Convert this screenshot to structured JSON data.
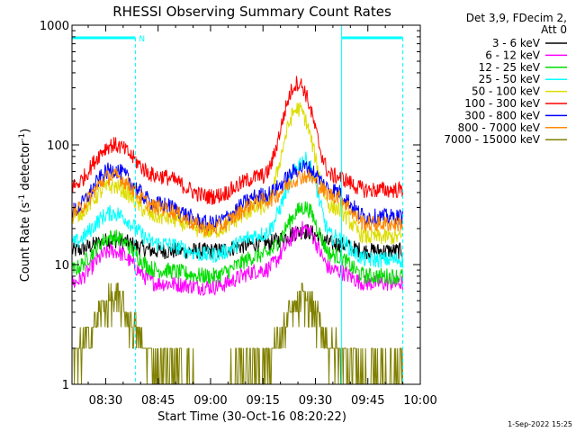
{
  "chart_data": {
    "type": "line",
    "title": "RHESSI Observing Summary Count Rates",
    "xlabel": "Start Time (30-Oct-16 08:20:22)",
    "ylabel": "Count Rate (s",
    "ylabel_sup": "-1",
    "ylabel_tail": " detector",
    "ylabel_sup2": "-1",
    "ylabel_end": ")",
    "yscale": "log",
    "xlim": [
      "08:20:22",
      "10:00:00"
    ],
    "ylim": [
      1,
      1000
    ],
    "x_ticks": [
      "08:30",
      "08:45",
      "09:00",
      "09:15",
      "09:30",
      "09:45",
      "10:00"
    ],
    "y_ticks": [
      "1",
      "10",
      "100",
      "1000"
    ],
    "grid": false,
    "legend_position": "right",
    "legend_header": [
      "Det 3,9, FDecim 2,",
      "Att 0"
    ],
    "flag_label": "N",
    "flag_intervals": [
      [
        "08:20:22",
        "08:38:30"
      ],
      [
        "09:37:30",
        "09:55:00"
      ]
    ],
    "footer_date": "1-Sep-2022 15:25",
    "series": [
      {
        "name": "3 - 6 keV",
        "color": "#000000",
        "values": [
          {
            "x": "08:20",
            "y": 13
          },
          {
            "x": "08:32",
            "y": 16
          },
          {
            "x": "08:45",
            "y": 13
          },
          {
            "x": "09:00",
            "y": 13
          },
          {
            "x": "09:15",
            "y": 15
          },
          {
            "x": "09:27",
            "y": 19
          },
          {
            "x": "09:35",
            "y": 15
          },
          {
            "x": "09:45",
            "y": 13
          },
          {
            "x": "09:55",
            "y": 13
          }
        ]
      },
      {
        "name": "6 - 12 keV",
        "color": "#ff00ff",
        "values": [
          {
            "x": "08:20",
            "y": 7
          },
          {
            "x": "08:32",
            "y": 13
          },
          {
            "x": "08:45",
            "y": 7
          },
          {
            "x": "09:00",
            "y": 6.5
          },
          {
            "x": "09:15",
            "y": 9
          },
          {
            "x": "09:27",
            "y": 20
          },
          {
            "x": "09:35",
            "y": 9
          },
          {
            "x": "09:45",
            "y": 7
          },
          {
            "x": "09:55",
            "y": 7
          }
        ]
      },
      {
        "name": "12 - 25 keV",
        "color": "#00dd00",
        "values": [
          {
            "x": "08:20",
            "y": 9
          },
          {
            "x": "08:32",
            "y": 17
          },
          {
            "x": "08:45",
            "y": 9
          },
          {
            "x": "09:00",
            "y": 8
          },
          {
            "x": "09:15",
            "y": 12
          },
          {
            "x": "09:27",
            "y": 30
          },
          {
            "x": "09:35",
            "y": 12
          },
          {
            "x": "09:45",
            "y": 8
          },
          {
            "x": "09:55",
            "y": 8
          }
        ]
      },
      {
        "name": "25 - 50 keV",
        "color": "#00ffff",
        "values": [
          {
            "x": "08:20",
            "y": 15
          },
          {
            "x": "08:32",
            "y": 27
          },
          {
            "x": "08:45",
            "y": 15
          },
          {
            "x": "09:00",
            "y": 12
          },
          {
            "x": "09:15",
            "y": 18
          },
          {
            "x": "09:27",
            "y": 75
          },
          {
            "x": "09:35",
            "y": 17
          },
          {
            "x": "09:45",
            "y": 11
          },
          {
            "x": "09:55",
            "y": 11
          }
        ]
      },
      {
        "name": "50 - 100 keV",
        "color": "#dddd00",
        "values": [
          {
            "x": "08:20",
            "y": 25
          },
          {
            "x": "08:32",
            "y": 45
          },
          {
            "x": "08:45",
            "y": 25
          },
          {
            "x": "09:00",
            "y": 19
          },
          {
            "x": "09:15",
            "y": 30
          },
          {
            "x": "09:25",
            "y": 200
          },
          {
            "x": "09:35",
            "y": 30
          },
          {
            "x": "09:45",
            "y": 17
          },
          {
            "x": "09:55",
            "y": 17
          }
        ]
      },
      {
        "name": "100 - 300 keV",
        "color": "#ff0000",
        "values": [
          {
            "x": "08:20",
            "y": 45
          },
          {
            "x": "08:32",
            "y": 100
          },
          {
            "x": "08:45",
            "y": 55
          },
          {
            "x": "09:00",
            "y": 37
          },
          {
            "x": "09:15",
            "y": 55
          },
          {
            "x": "09:25",
            "y": 330
          },
          {
            "x": "09:35",
            "y": 55
          },
          {
            "x": "09:45",
            "y": 42
          },
          {
            "x": "09:55",
            "y": 42
          }
        ]
      },
      {
        "name": "300 - 800 keV",
        "color": "#0000ff",
        "values": [
          {
            "x": "08:20",
            "y": 28
          },
          {
            "x": "08:32",
            "y": 62
          },
          {
            "x": "08:45",
            "y": 32
          },
          {
            "x": "09:00",
            "y": 22
          },
          {
            "x": "09:15",
            "y": 38
          },
          {
            "x": "09:27",
            "y": 65
          },
          {
            "x": "09:35",
            "y": 42
          },
          {
            "x": "09:45",
            "y": 25
          },
          {
            "x": "09:55",
            "y": 25
          }
        ]
      },
      {
        "name": "800 - 7000 keV",
        "color": "#ff8800",
        "values": [
          {
            "x": "08:20",
            "y": 27
          },
          {
            "x": "08:32",
            "y": 55
          },
          {
            "x": "08:45",
            "y": 30
          },
          {
            "x": "09:00",
            "y": 20
          },
          {
            "x": "09:15",
            "y": 34
          },
          {
            "x": "09:27",
            "y": 55
          },
          {
            "x": "09:35",
            "y": 38
          },
          {
            "x": "09:45",
            "y": 22
          },
          {
            "x": "09:55",
            "y": 22
          }
        ]
      },
      {
        "name": "7000 - 15000 keV",
        "color": "#808000",
        "values": [
          {
            "x": "08:20",
            "y": 1.6
          },
          {
            "x": "08:32",
            "y": 5
          },
          {
            "x": "08:45",
            "y": 1.6
          },
          {
            "x": "09:00",
            "y": 1
          },
          {
            "x": "09:15",
            "y": 1.6
          },
          {
            "x": "09:27",
            "y": 5
          },
          {
            "x": "09:35",
            "y": 2
          },
          {
            "x": "09:45",
            "y": 1.3
          },
          {
            "x": "09:55",
            "y": 1.3
          }
        ]
      }
    ]
  }
}
